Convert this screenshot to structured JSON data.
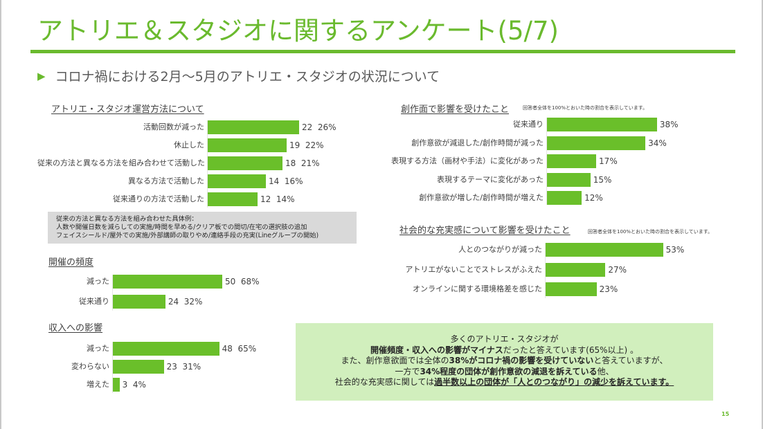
{
  "title": "アトリエ＆スタジオに関するアンケート(5/7)",
  "subtitle": "コロナ禍における2月～5月のアトリエ・スタジオの状況について",
  "accent_color": "#6aba2e",
  "bar_color": "#6abf2a",
  "summary_bg": "#d1efbd",
  "sections": {
    "operation": {
      "title": "アトリエ・スタジオ運営方法について",
      "rows": [
        {
          "label": "活動回数が減った",
          "count": 22,
          "pct": "26%"
        },
        {
          "label": "休止した",
          "count": 19,
          "pct": "22%"
        },
        {
          "label": "従来の方法と異なる方法を組み合わせて活動した",
          "count": 18,
          "pct": "21%"
        },
        {
          "label": "異なる方法で活動した",
          "count": 14,
          "pct": "16%"
        },
        {
          "label": "従来通りの方法で活動した",
          "count": 12,
          "pct": "14%"
        }
      ]
    },
    "example_box": {
      "lines": [
        "従来の方法と異なる方法を組み合わせた具体例：",
        "人数や開催日数を減らしての実施/時間を早める/クリア板での間切/在宅の選択肢の追加",
        "フェイスシールド/屋外での実施/外部講師の取りやめ/連絡手段の充実(Lineグループの開始)"
      ]
    },
    "frequency": {
      "title": "開催の頻度",
      "rows": [
        {
          "label": "減った",
          "count": 50,
          "pct": "68%"
        },
        {
          "label": "従来通り",
          "count": 24,
          "pct": "32%"
        }
      ]
    },
    "income": {
      "title": "収入への影響",
      "rows": [
        {
          "label": "減った",
          "count": 48,
          "pct": "65%"
        },
        {
          "label": "変わらない",
          "count": 23,
          "pct": "31%"
        },
        {
          "label": "増えた",
          "count": 3,
          "pct": "4%"
        }
      ]
    },
    "creative": {
      "title": "創作面で影響を受けたこと",
      "note": "回答者全体を100%とおいた時の割合を表示しています。",
      "rows": [
        {
          "label": "従来通り",
          "pct_value": 38,
          "pct": "38%"
        },
        {
          "label": "創作意欲が減退した/創作時間が減った",
          "pct_value": 34,
          "pct": "34%"
        },
        {
          "label": "表現する方法（画材や手法）に変化があった",
          "pct_value": 17,
          "pct": "17%"
        },
        {
          "label": "表現するテーマに変化があった",
          "pct_value": 15,
          "pct": "15%"
        },
        {
          "label": "創作意欲が増した/創作時間が増えた",
          "pct_value": 12,
          "pct": "12%"
        }
      ]
    },
    "social": {
      "title": "社会的な充実感について影響を受けたこと",
      "note": "回答者全体を100%とおいた時の割合を表示しています。",
      "rows": [
        {
          "label": "人とのつながりが減った",
          "pct_value": 53,
          "pct": "53%"
        },
        {
          "label": "アトリエがないことでストレスがふえた",
          "pct_value": 27,
          "pct": "27%"
        },
        {
          "label": "オンラインに関する環境格差を感じた",
          "pct_value": 23,
          "pct": "23%"
        }
      ]
    }
  },
  "summary": {
    "line1": "多くのアトリエ・スタジオが",
    "line2_bold": "開催頻度・収入への影響がマイナス",
    "line2_rest": "だったと答えています(65%以上) 。",
    "line3_a": "また、創作意欲面では全体の",
    "line3_bold": "38%がコロナ禍の影響を受けていない",
    "line3_b": "と答えていますが、",
    "line4_a": "一方で",
    "line4_bold": "34%程度の団体が創作意欲の減退を訴えている",
    "line4_b": "他、",
    "line5_a": "社会的な充実感に関しては",
    "line5_underline": "過半数以上の団体が「人とのつながり」の減少を訴えています。"
  },
  "page_number": "15",
  "chart_data": [
    {
      "type": "bar",
      "orientation": "horizontal",
      "title": "アトリエ・スタジオ運営方法について",
      "categories": [
        "活動回数が減った",
        "休止した",
        "従来の方法と異なる方法を組み合わせて活動した",
        "異なる方法で活動した",
        "従来通りの方法で活動した"
      ],
      "values": [
        22,
        19,
        18,
        14,
        12
      ],
      "labels": [
        "22 26%",
        "19 22%",
        "18 21%",
        "14 16%",
        "12 14%"
      ]
    },
    {
      "type": "bar",
      "orientation": "horizontal",
      "title": "開催の頻度",
      "categories": [
        "減った",
        "従来通り"
      ],
      "values": [
        50,
        24
      ],
      "labels": [
        "50 68%",
        "24 32%"
      ]
    },
    {
      "type": "bar",
      "orientation": "horizontal",
      "title": "収入への影響",
      "categories": [
        "減った",
        "変わらない",
        "増えた"
      ],
      "values": [
        48,
        23,
        3
      ],
      "labels": [
        "48 65%",
        "23 31%",
        "3 4%"
      ]
    },
    {
      "type": "bar",
      "orientation": "horizontal",
      "title": "創作面で影響を受けたこと",
      "categories": [
        "従来通り",
        "創作意欲が減退した/創作時間が減った",
        "表現する方法（画材や手法）に変化があった",
        "表現するテーマに変化があった",
        "創作意欲が増した/創作時間が増えた"
      ],
      "values": [
        38,
        34,
        17,
        15,
        12
      ],
      "unit": "%"
    },
    {
      "type": "bar",
      "orientation": "horizontal",
      "title": "社会的な充実感について影響を受けたこと",
      "categories": [
        "人とのつながりが減った",
        "アトリエがないことでストレスがふえた",
        "オンラインに関する環境格差を感じた"
      ],
      "values": [
        53,
        27,
        23
      ],
      "unit": "%"
    }
  ]
}
